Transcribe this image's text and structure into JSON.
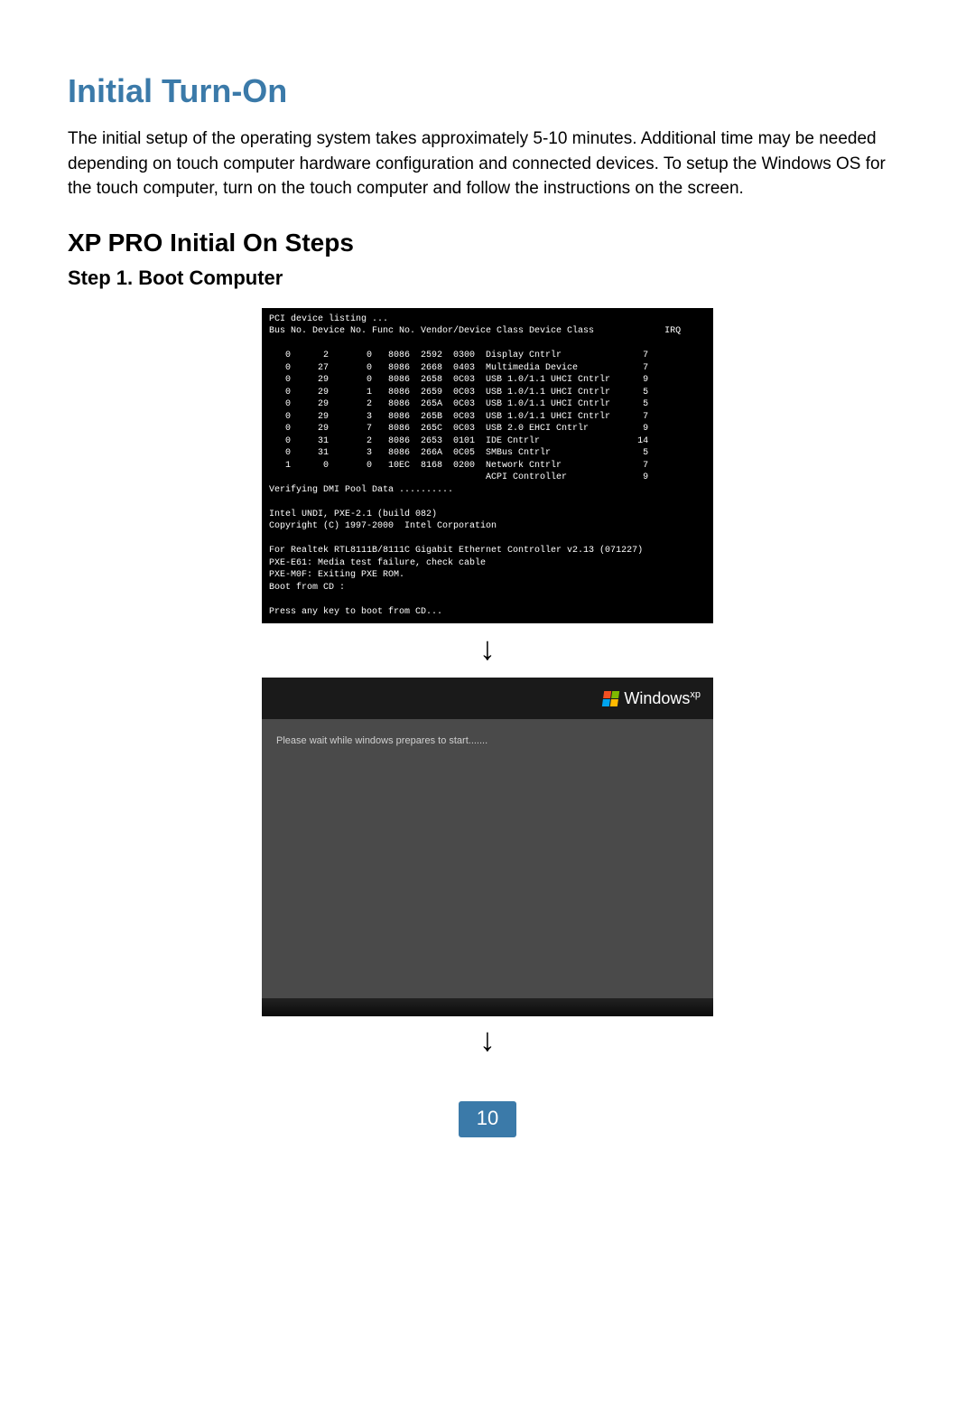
{
  "title": "Initial Turn-On",
  "intro": "The initial setup of the operating system takes approximately 5-10 minutes. Additional time may be needed depending on touch computer hardware configuration and connected devices. To setup the Windows OS for the touch computer, turn on the touch computer and follow the instructions on the screen.",
  "subtitle": "XP PRO Initial On Steps",
  "step1": "Step 1. Boot Computer",
  "bios": {
    "header_left": "PCI device listing ...",
    "columns": "Bus No. Device No. Func No. Vendor/Device Class Device Class",
    "irq_label": "IRQ",
    "rows": [
      {
        "bus": "0",
        "dev": "2",
        "func": "0",
        "vendor": "8086",
        "device": "2592",
        "cls": "0300",
        "desc": "Display Cntrlr",
        "irq": "7"
      },
      {
        "bus": "0",
        "dev": "27",
        "func": "0",
        "vendor": "8086",
        "device": "2668",
        "cls": "0403",
        "desc": "Multimedia Device",
        "irq": "7"
      },
      {
        "bus": "0",
        "dev": "29",
        "func": "0",
        "vendor": "8086",
        "device": "2658",
        "cls": "0C03",
        "desc": "USB 1.0/1.1 UHCI Cntrlr",
        "irq": "9"
      },
      {
        "bus": "0",
        "dev": "29",
        "func": "1",
        "vendor": "8086",
        "device": "2659",
        "cls": "0C03",
        "desc": "USB 1.0/1.1 UHCI Cntrlr",
        "irq": "5"
      },
      {
        "bus": "0",
        "dev": "29",
        "func": "2",
        "vendor": "8086",
        "device": "265A",
        "cls": "0C03",
        "desc": "USB 1.0/1.1 UHCI Cntrlr",
        "irq": "5"
      },
      {
        "bus": "0",
        "dev": "29",
        "func": "3",
        "vendor": "8086",
        "device": "265B",
        "cls": "0C03",
        "desc": "USB 1.0/1.1 UHCI Cntrlr",
        "irq": "7"
      },
      {
        "bus": "0",
        "dev": "29",
        "func": "7",
        "vendor": "8086",
        "device": "265C",
        "cls": "0C03",
        "desc": "USB 2.0 EHCI Cntrlr",
        "irq": "9"
      },
      {
        "bus": "0",
        "dev": "31",
        "func": "2",
        "vendor": "8086",
        "device": "2653",
        "cls": "0101",
        "desc": "IDE Cntrlr",
        "irq": "14"
      },
      {
        "bus": "0",
        "dev": "31",
        "func": "3",
        "vendor": "8086",
        "device": "266A",
        "cls": "0C05",
        "desc": "SMBus Cntrlr",
        "irq": "5"
      },
      {
        "bus": "1",
        "dev": "0",
        "func": "0",
        "vendor": "10EC",
        "device": "8168",
        "cls": "0200",
        "desc": "Network Cntrlr",
        "irq": "7"
      }
    ],
    "acpi": {
      "desc": "ACPI Controller",
      "irq": "9"
    },
    "verify": "Verifying DMI Pool Data ..........",
    "undi1": "Intel UNDI, PXE-2.1 (build 082)",
    "undi2": "Copyright (C) 1997-2000  Intel Corporation",
    "realtek": "For Realtek RTL8111B/8111C Gigabit Ethernet Controller v2.13 (071227)",
    "pxe1": "PXE-E61: Media test failure, check cable",
    "pxe2": "PXE-M0F: Exiting PXE ROM.",
    "bootcd": "Boot from CD :",
    "press": "Press any key to boot from CD..."
  },
  "xp": {
    "brand": "Windows",
    "xp": "xp",
    "wait": "Please wait while windows prepares to start......."
  },
  "arrow": "↓",
  "page_number": "10",
  "colors": {
    "accent": "#3b7aa9",
    "bios_bg": "#000000",
    "bios_fg": "#ffffff",
    "xp_bg": "#4a4a4a"
  }
}
